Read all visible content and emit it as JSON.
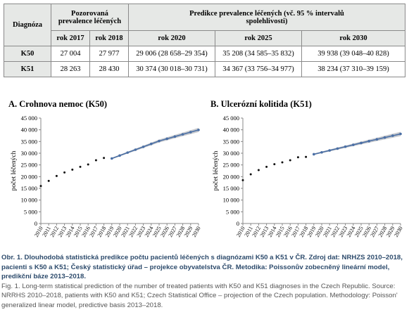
{
  "table": {
    "header": {
      "diagnosis": "Diagnóza",
      "observed": "Pozorovaná prevalence léčených",
      "predicted": "Predikce prevalence léčených (vč. 95 % intervalů spolehlivosti)",
      "years": [
        "rok 2017",
        "rok 2018",
        "rok 2020",
        "rok 2025",
        "rok 2030"
      ]
    },
    "rows": [
      [
        "K50",
        "27 004",
        "27 977",
        "29 006 (28 658–29 354)",
        "35 208 (34 585–35 832)",
        "39 938 (39 048–40 828)"
      ],
      [
        "K51",
        "28 263",
        "28 430",
        "30 374 (30 018–30 731)",
        "34 367 (33 756–34 977)",
        "38 234 (37 310–39 159)"
      ]
    ]
  },
  "chart_data": [
    {
      "type": "line",
      "title": "A. Crohnova nemoc (K50)",
      "ylabel": "počet léčených",
      "xlim": [
        2010,
        2030
      ],
      "xticks": [
        2010,
        2011,
        2012,
        2013,
        2014,
        2015,
        2016,
        2017,
        2018,
        2019,
        2020,
        2021,
        2022,
        2023,
        2024,
        2025,
        2026,
        2027,
        2028,
        2029,
        2030
      ],
      "ylim": [
        0,
        45000
      ],
      "yticks": [
        0,
        {
          "value": 5000,
          "label": "5 000"
        },
        {
          "value": 10000,
          "label": "10 000"
        },
        {
          "value": 15000,
          "label": "15 000"
        },
        {
          "value": 20000,
          "label": "20 000"
        },
        {
          "value": 25000,
          "label": "25 000"
        },
        {
          "value": 30000,
          "label": "30 000"
        },
        {
          "value": 35000,
          "label": "35 000"
        },
        {
          "value": 40000,
          "label": "40 000"
        },
        {
          "value": 45000,
          "label": "45 000"
        }
      ],
      "series": [
        {
          "color": "#111111",
          "x": [
            2010,
            2011,
            2012,
            2013,
            2014,
            2015,
            2016,
            2017,
            2018
          ],
          "values": [
            16000,
            18200,
            20300,
            21800,
            23000,
            24200,
            25200,
            27004,
            27977
          ]
        },
        {
          "color": "#4a6fa5",
          "band_color": "#b9bcc0",
          "x": [
            2019,
            2020,
            2021,
            2022,
            2023,
            2024,
            2025,
            2026,
            2027,
            2028,
            2029,
            2030
          ],
          "values": [
            27750,
            29006,
            30260,
            31500,
            32740,
            33980,
            35208,
            36160,
            37110,
            38060,
            39000,
            39938
          ],
          "lower": [
            27450,
            28658,
            29840,
            31020,
            32200,
            33390,
            34585,
            35480,
            36370,
            37260,
            38150,
            39048
          ],
          "upper": [
            28050,
            29354,
            30650,
            31950,
            33240,
            34540,
            35832,
            36830,
            37830,
            38830,
            39830,
            40828
          ]
        }
      ]
    },
    {
      "type": "line",
      "title": "B. Ulcerózní kolitida (K51)",
      "ylabel": "počet léčených",
      "xlim": [
        2010,
        2030
      ],
      "xticks": [
        2010,
        2011,
        2012,
        2013,
        2014,
        2015,
        2016,
        2017,
        2018,
        2019,
        2020,
        2021,
        2022,
        2023,
        2024,
        2025,
        2026,
        2027,
        2028,
        2029,
        2030
      ],
      "ylim": [
        0,
        45000
      ],
      "yticks": [
        0,
        {
          "value": 5000,
          "label": "5 000"
        },
        {
          "value": 10000,
          "label": "10 000"
        },
        {
          "value": 15000,
          "label": "15 000"
        },
        {
          "value": 20000,
          "label": "20 000"
        },
        {
          "value": 25000,
          "label": "25 000"
        },
        {
          "value": 30000,
          "label": "30 000"
        },
        {
          "value": 35000,
          "label": "35 000"
        },
        {
          "value": 40000,
          "label": "40 000"
        },
        {
          "value": 45000,
          "label": "45 000"
        }
      ],
      "series": [
        {
          "color": "#111111",
          "x": [
            2010,
            2011,
            2012,
            2013,
            2014,
            2015,
            2016,
            2017,
            2018
          ],
          "values": [
            18500,
            21000,
            22800,
            24200,
            25300,
            26100,
            27000,
            28263,
            28430
          ]
        },
        {
          "color": "#4a6fa5",
          "band_color": "#b9bcc0",
          "x": [
            2019,
            2020,
            2021,
            2022,
            2023,
            2024,
            2025,
            2026,
            2027,
            2028,
            2029,
            2030
          ],
          "values": [
            29560,
            30374,
            31180,
            31980,
            32780,
            33580,
            34367,
            35150,
            35930,
            36700,
            37470,
            38234
          ],
          "lower": [
            29250,
            30018,
            30760,
            31500,
            32250,
            33000,
            33756,
            34470,
            35180,
            35890,
            36600,
            37310
          ],
          "upper": [
            29870,
            30731,
            31580,
            32440,
            33280,
            34130,
            34977,
            35810,
            36650,
            37490,
            38320,
            39159
          ]
        }
      ]
    }
  ],
  "caption": {
    "cz": "Obr. 1. Dlouhodobá statistická predikce počtu pacientů léčených s diagnózami K50 a K51 v ČR. Zdroj dat: NRHZS 2010–2018, pacienti s K50 a K51; Český statistický úřad – projekce obyvatelstva ČR. Metodika: Poissonův zobecněný lineární model, predikční báze 2013–2018.",
    "en": "Fig. 1. Long-term statistical prediction of the number of treated patients with K50 and K51 diagnoses in the Czech Republic. Source: NRRHS 2010–2018, patients with K50 and K51; Czech Statistical Office – projection of the Czech population. Methodology: Poisson' generalized linear model, predictive basis 2013–2018."
  }
}
